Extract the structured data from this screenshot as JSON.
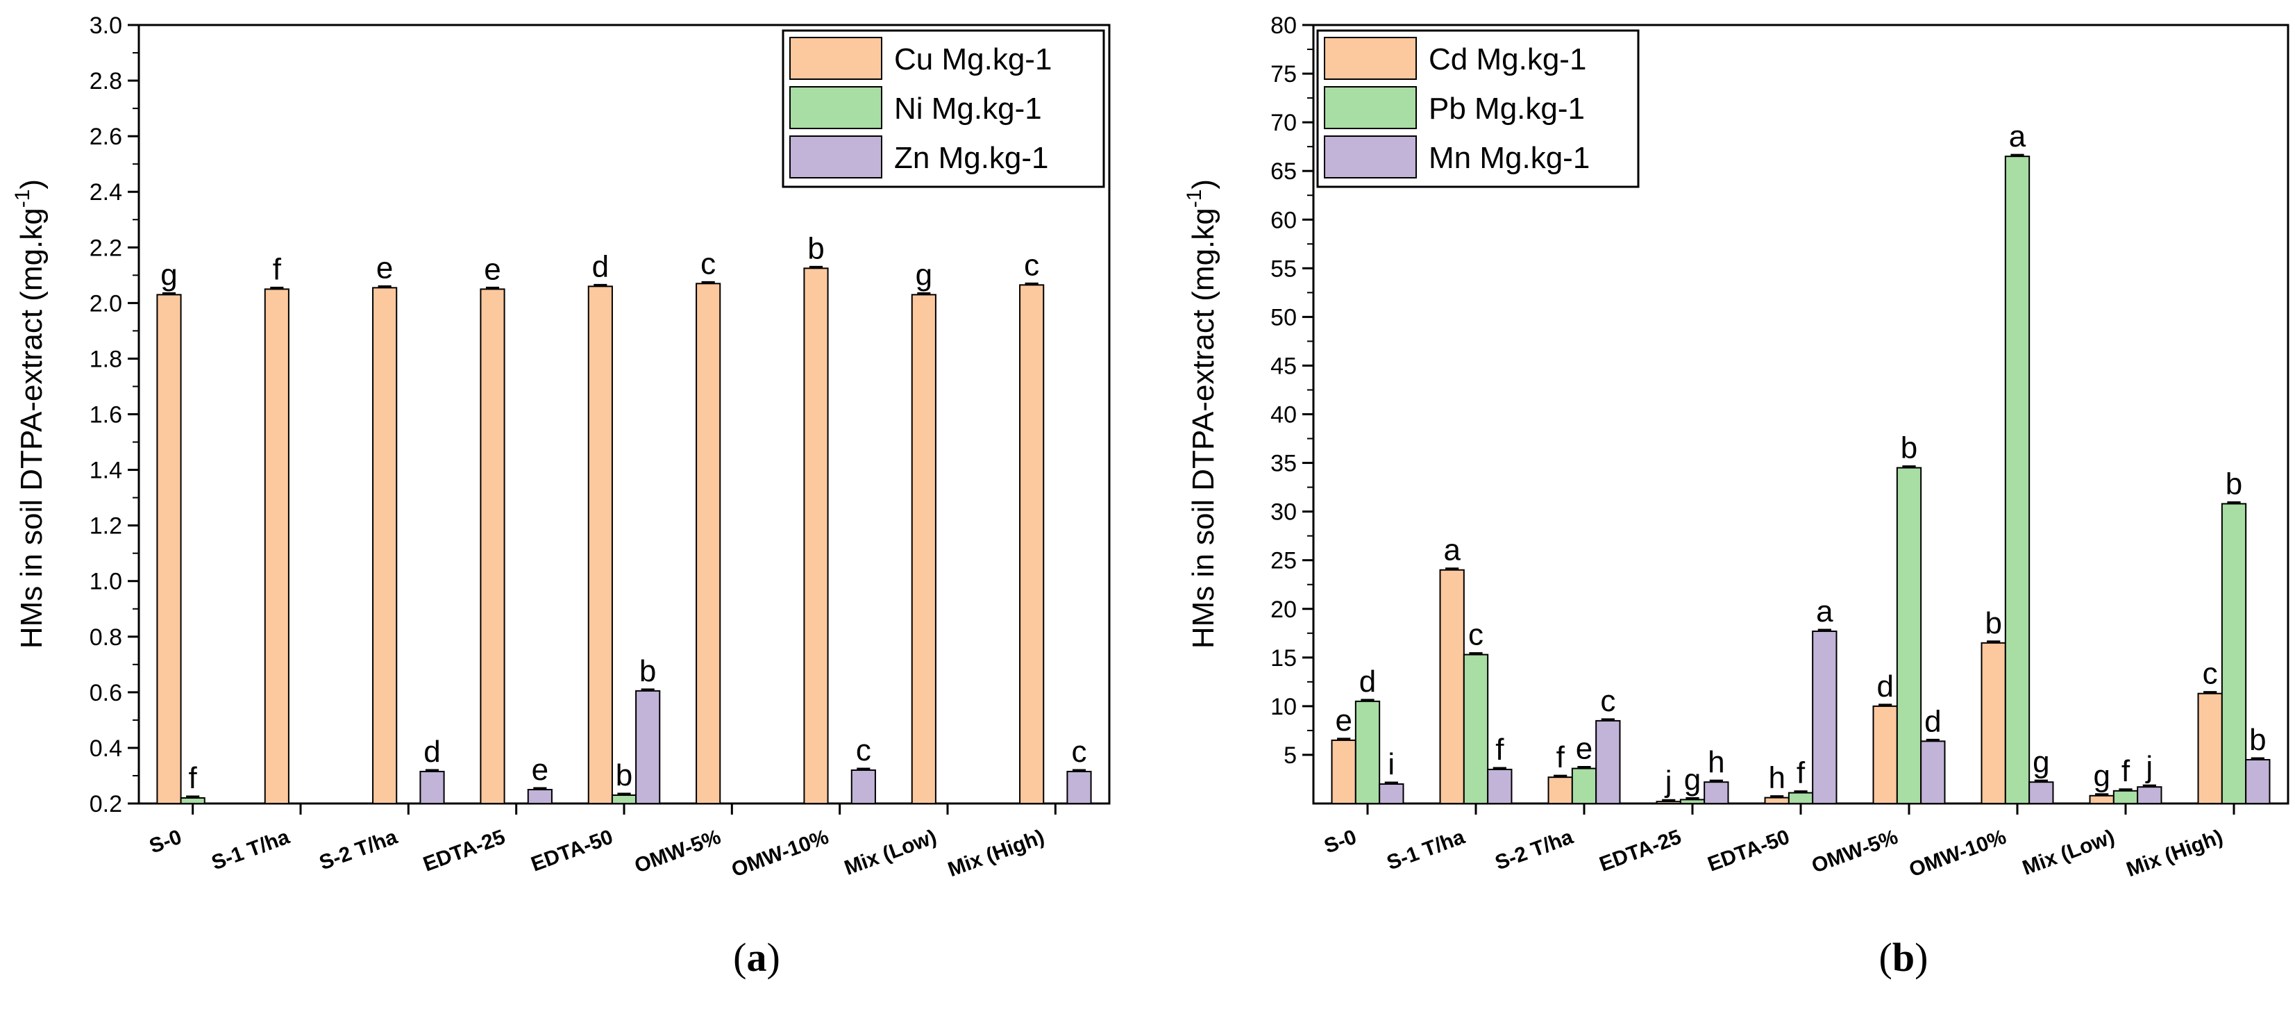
{
  "chart_data": [
    {
      "type": "bar",
      "panel_label": "(a)",
      "panel_letter": "a",
      "categories": [
        "S-0",
        "S-1 T/ha",
        "S-2 T/ha",
        "EDTA-25",
        "EDTA-50",
        "OMW-5%",
        "OMW-10%",
        "Mix (Low)",
        "Mix (High)"
      ],
      "ylabel": "HMs in soil DTPA-extract (mg.kg",
      "ylabel_sup": "-1",
      "ylabel_close": ")",
      "xlabel": "",
      "ylim": [
        0.2,
        3.0
      ],
      "yticks": [
        "0.2",
        "0.4",
        "0.6",
        "0.8",
        "1.0",
        "1.2",
        "1.4",
        "1.6",
        "1.8",
        "2.0",
        "2.2",
        "2.4",
        "2.6",
        "2.8",
        "3.0"
      ],
      "legend_position": "top-right",
      "series": [
        {
          "name": "Cu Mg.kg-1",
          "color": "#fcc89e",
          "values": [
            2.03,
            2.05,
            2.055,
            2.05,
            2.06,
            2.07,
            2.125,
            2.03,
            2.065
          ],
          "labels": [
            "g",
            "f",
            "e",
            "e",
            "d",
            "c",
            "b",
            "g",
            "c"
          ]
        },
        {
          "name": "Ni Mg.kg-1",
          "color": "#a8dda4",
          "values": [
            0.22,
            null,
            null,
            null,
            0.23,
            null,
            null,
            null,
            null
          ],
          "labels": [
            "f",
            "",
            "",
            "",
            "b",
            "",
            "",
            "",
            ""
          ]
        },
        {
          "name": "Zn Mg.kg-1",
          "color": "#c2b3d8",
          "values": [
            null,
            null,
            0.315,
            0.25,
            0.605,
            null,
            0.32,
            null,
            0.315
          ],
          "labels": [
            "",
            "",
            "d",
            "e",
            "b",
            "",
            "c",
            "",
            "c"
          ]
        }
      ]
    },
    {
      "type": "bar",
      "panel_label": "(b)",
      "panel_letter": "b",
      "categories": [
        "S-0",
        "S-1 T/ha",
        "S-2 T/ha",
        "EDTA-25",
        "EDTA-50",
        "OMW-5%",
        "OMW-10%",
        "Mix (Low)",
        "Mix (High)"
      ],
      "ylabel": "HMs in soil DTPA-extract (mg.kg",
      "ylabel_sup": "-1",
      "ylabel_close": ")",
      "xlabel": "",
      "ylim": [
        0,
        80
      ],
      "yticks": [
        "5",
        "10",
        "15",
        "20",
        "25",
        "30",
        "35",
        "40",
        "45",
        "50",
        "55",
        "60",
        "65",
        "70",
        "75",
        "80"
      ],
      "legend_position": "top-left",
      "series": [
        {
          "name": "Cd Mg.kg-1",
          "color": "#fcc89e",
          "values": [
            6.5,
            24.0,
            2.7,
            0.2,
            0.6,
            10.0,
            16.5,
            0.8,
            11.3
          ],
          "labels": [
            "e",
            "a",
            "f",
            "j",
            "h",
            "d",
            "b",
            "g",
            "c"
          ]
        },
        {
          "name": "Pb Mg.kg-1",
          "color": "#a8dda4",
          "values": [
            10.5,
            15.3,
            3.6,
            0.4,
            1.1,
            34.5,
            66.5,
            1.3,
            30.8
          ],
          "labels": [
            "d",
            "c",
            "e",
            "g",
            "f",
            "b",
            "a",
            "f",
            "b"
          ]
        },
        {
          "name": "Mn Mg.kg-1",
          "color": "#c2b3d8",
          "values": [
            2.0,
            3.5,
            8.5,
            2.2,
            17.7,
            6.4,
            2.2,
            1.7,
            4.5
          ],
          "labels": [
            "i",
            "f",
            "c",
            "h",
            "a",
            "d",
            "g",
            "j",
            "b"
          ]
        }
      ]
    }
  ]
}
